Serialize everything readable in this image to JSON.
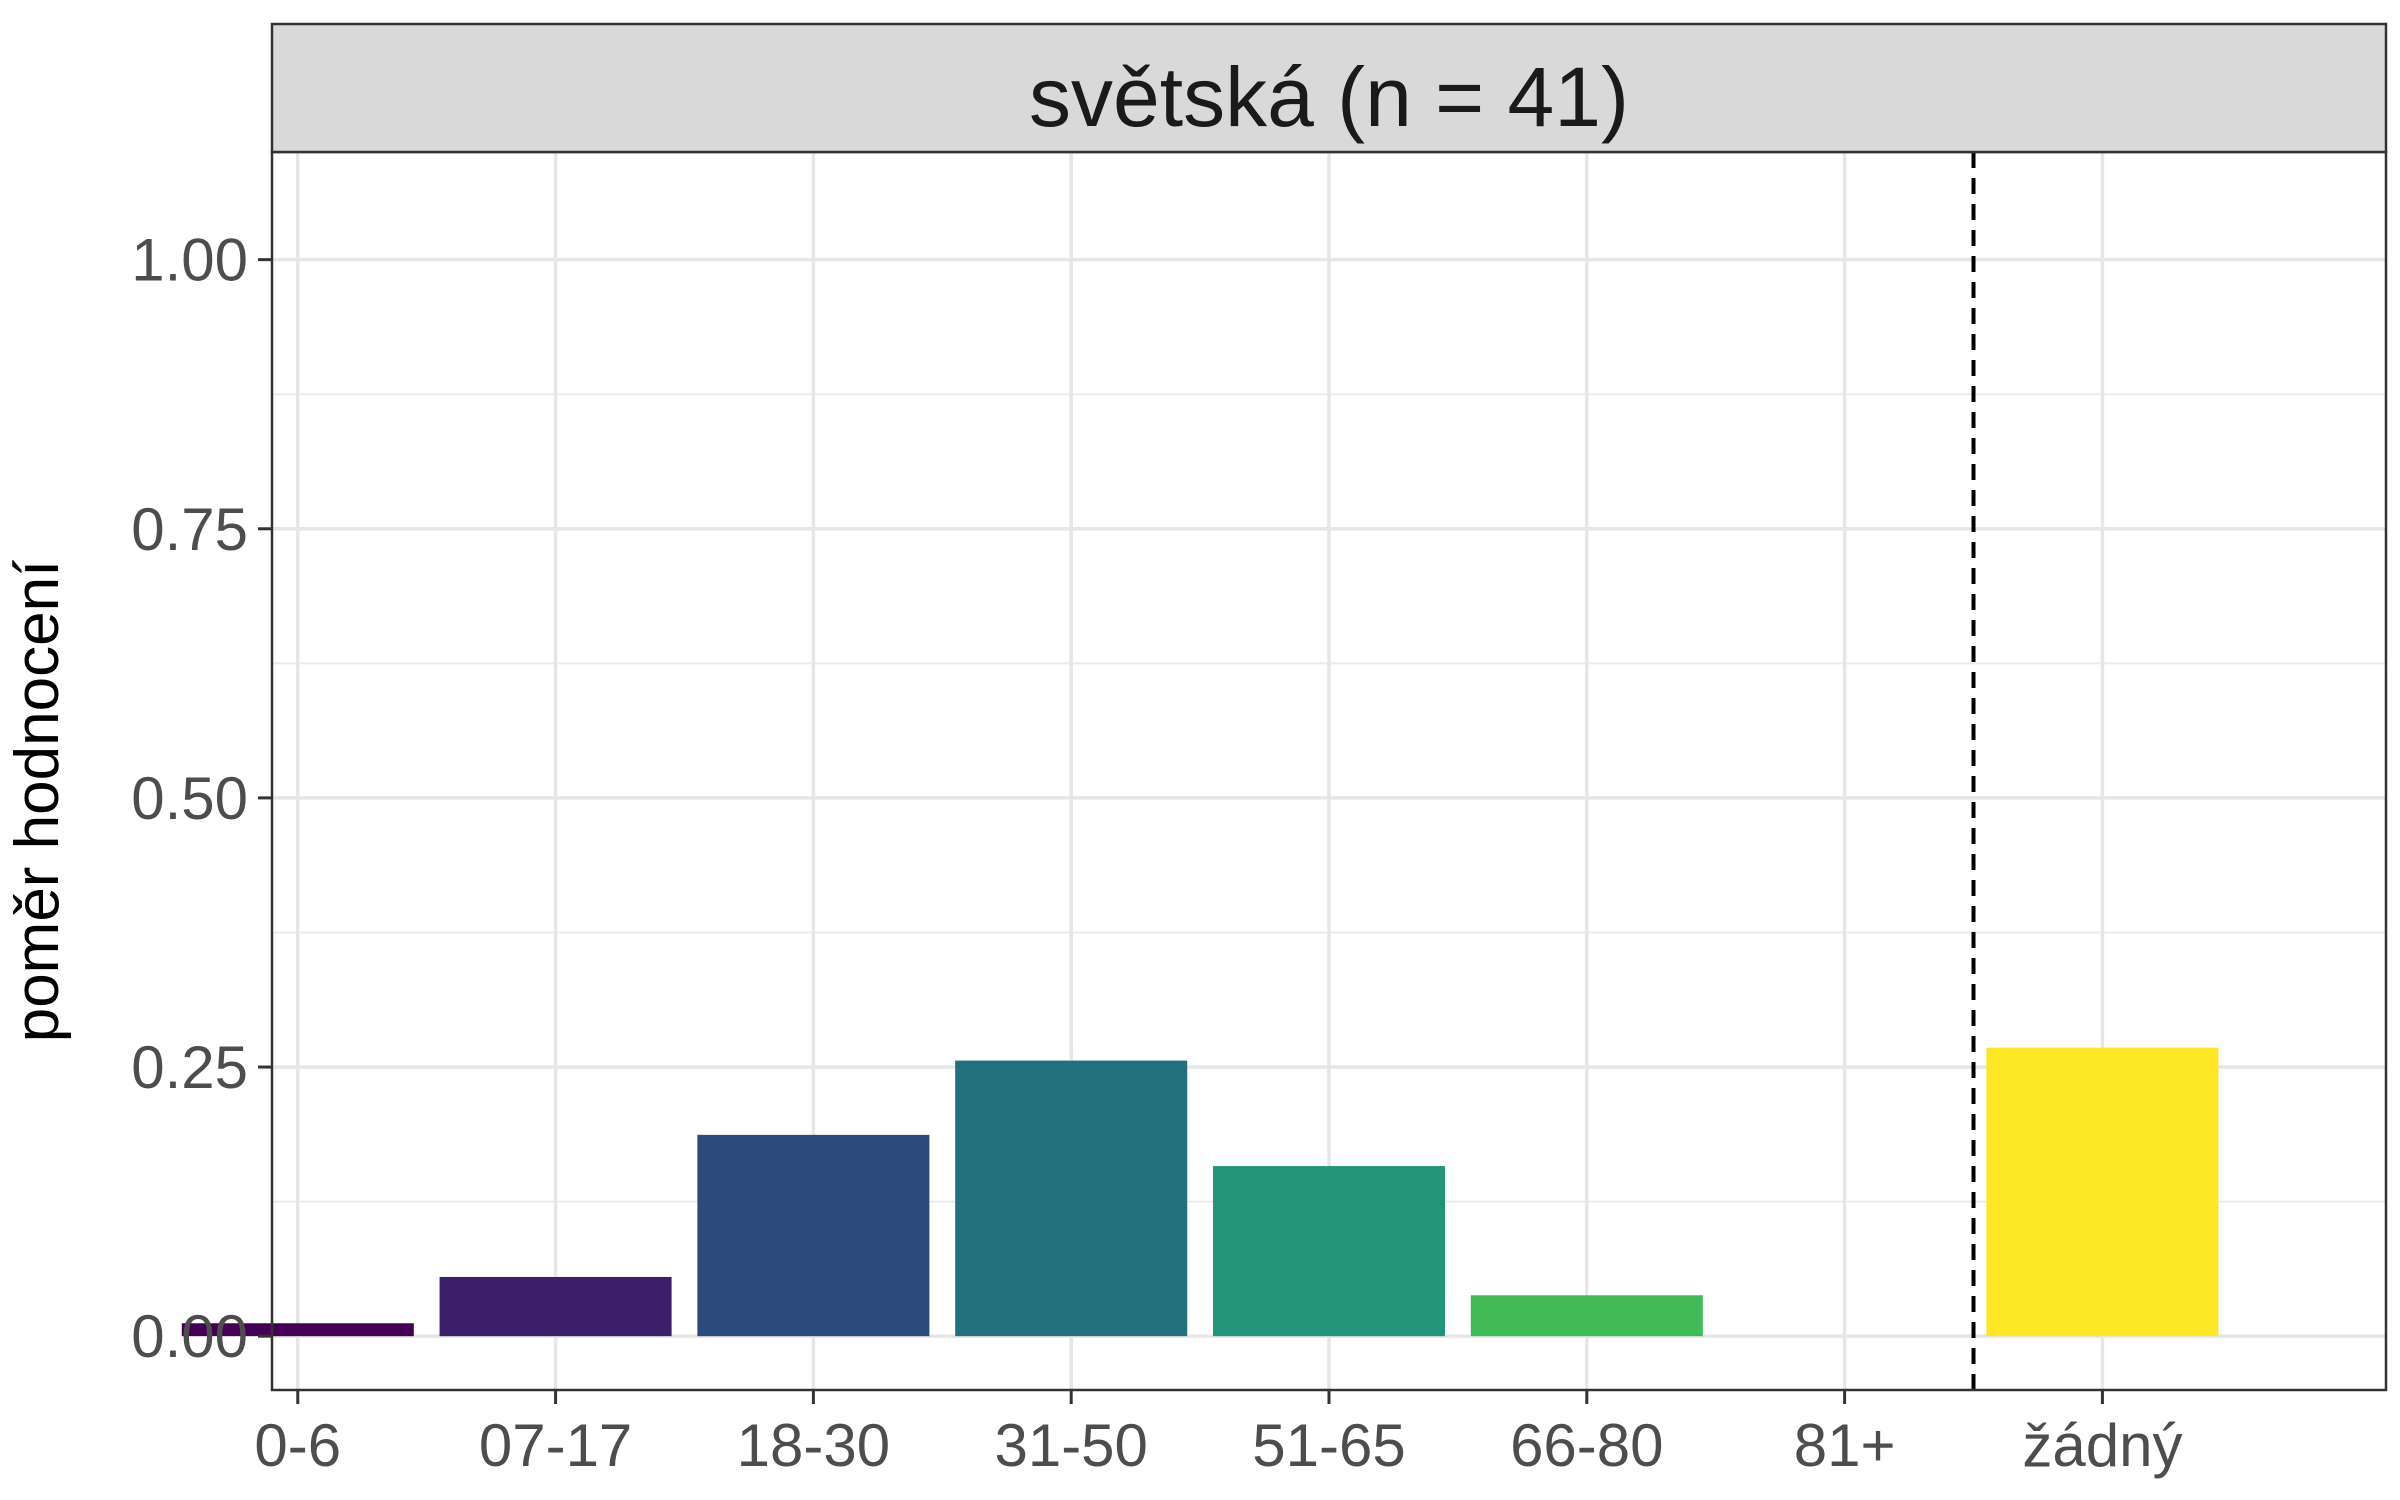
{
  "chart_data": {
    "type": "bar",
    "panel_title": "světská (n = 41)",
    "ylabel": "poměr hodnocení",
    "xlabel": "",
    "ylim": [
      -0.05,
      1.1
    ],
    "yticks": [
      0.0,
      0.25,
      0.5,
      0.75,
      1.0
    ],
    "ytick_labels": [
      "0.00",
      "0.25",
      "0.50",
      "0.75",
      "1.00"
    ],
    "categories": [
      "0-6",
      "07-17",
      "18-30",
      "31-50",
      "51-65",
      "66-80",
      "81+",
      "žádný"
    ],
    "values": [
      0.012,
      0.055,
      0.187,
      0.256,
      0.158,
      0.038,
      0.0,
      0.268
    ],
    "colors": [
      "#440154",
      "#3b1f6b",
      "#2c4a7b",
      "#21707d",
      "#23947a",
      "#41bb57",
      "#a5d63c",
      "#fde725"
    ],
    "separator_after_category": "81+",
    "grid": true,
    "legend": "none"
  }
}
